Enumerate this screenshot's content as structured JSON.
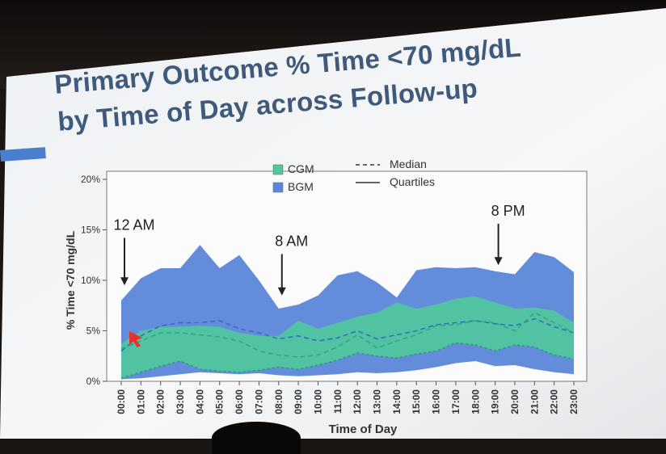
{
  "slide": {
    "title_line1": "Primary Outcome % Time <70 mg/dL",
    "title_line2": "by Time of Day across Follow-up"
  },
  "chart_data": {
    "type": "area",
    "title": "Primary Outcome % Time <70 mg/dL by Time of Day across Follow-up",
    "xlabel": "Time of Day",
    "ylabel": "% Time <70 mg/dL",
    "ylim": [
      0,
      20
    ],
    "yticks": [
      "0%",
      "5%",
      "10%",
      "15%",
      "20%"
    ],
    "grid": false,
    "legend_position": "top-center",
    "categories": [
      "00:00",
      "01:00",
      "02:00",
      "03:00",
      "04:00",
      "05:00",
      "06:00",
      "07:00",
      "08:00",
      "09:00",
      "10:00",
      "11:00",
      "12:00",
      "13:00",
      "14:00",
      "15:00",
      "16:00",
      "17:00",
      "18:00",
      "19:00",
      "20:00",
      "21:00",
      "22:00",
      "23:00"
    ],
    "legend": {
      "fill_labels": [
        "CGM",
        "BGM"
      ],
      "line_labels": [
        "Median",
        "Quartiles"
      ]
    },
    "series": [
      {
        "name": "BGM",
        "color": "#5b87d8",
        "q1": [
          0.2,
          0.3,
          0.5,
          0.7,
          0.9,
          0.8,
          0.7,
          0.8,
          0.6,
          0.5,
          0.6,
          0.7,
          0.9,
          0.8,
          0.9,
          1.1,
          1.4,
          1.8,
          2.0,
          1.5,
          1.6,
          1.2,
          0.9,
          0.7
        ],
        "median": [
          3.0,
          4.5,
          5.5,
          5.8,
          5.8,
          6.0,
          5.2,
          4.8,
          4.2,
          4.5,
          4.0,
          4.3,
          5.0,
          4.2,
          4.6,
          5.0,
          5.6,
          5.8,
          6.0,
          5.7,
          5.5,
          6.2,
          5.4,
          4.8
        ],
        "q3": [
          8.0,
          10.2,
          11.2,
          11.2,
          13.5,
          11.2,
          12.5,
          10.0,
          7.2,
          7.6,
          8.5,
          10.5,
          10.9,
          9.8,
          8.3,
          11.0,
          11.3,
          11.2,
          11.3,
          10.9,
          10.6,
          12.8,
          12.3,
          10.8
        ]
      },
      {
        "name": "CGM",
        "color": "#4fc99b",
        "q1": [
          0.3,
          0.9,
          1.5,
          2.0,
          1.2,
          1.0,
          0.9,
          1.1,
          1.4,
          1.2,
          1.6,
          2.1,
          2.8,
          2.5,
          2.3,
          2.7,
          3.0,
          3.8,
          3.6,
          3.0,
          3.6,
          3.4,
          2.6,
          2.2
        ],
        "median": [
          3.2,
          4.0,
          4.8,
          4.8,
          4.6,
          4.4,
          4.0,
          3.0,
          2.6,
          2.4,
          2.6,
          3.4,
          4.6,
          3.3,
          4.0,
          4.6,
          5.5,
          5.6,
          6.0,
          5.8,
          5.0,
          6.8,
          5.8,
          4.8
        ],
        "q3": [
          3.7,
          5.0,
          5.4,
          5.4,
          5.5,
          5.4,
          4.8,
          4.5,
          4.5,
          6.0,
          5.2,
          5.8,
          6.4,
          6.8,
          7.8,
          7.2,
          7.6,
          8.2,
          8.4,
          7.8,
          7.2,
          7.3,
          7.0,
          5.8
        ]
      }
    ],
    "annotations": [
      {
        "text": "12 AM",
        "x": "00:00",
        "y_top": 15.0,
        "y_arrow": 9.5
      },
      {
        "text": "8 AM",
        "x": "08:00",
        "y_top": 13.4,
        "y_arrow": 8.5
      },
      {
        "text": "8 PM",
        "x": "19:00",
        "y_top": 16.4,
        "y_arrow": 11.5
      }
    ]
  }
}
